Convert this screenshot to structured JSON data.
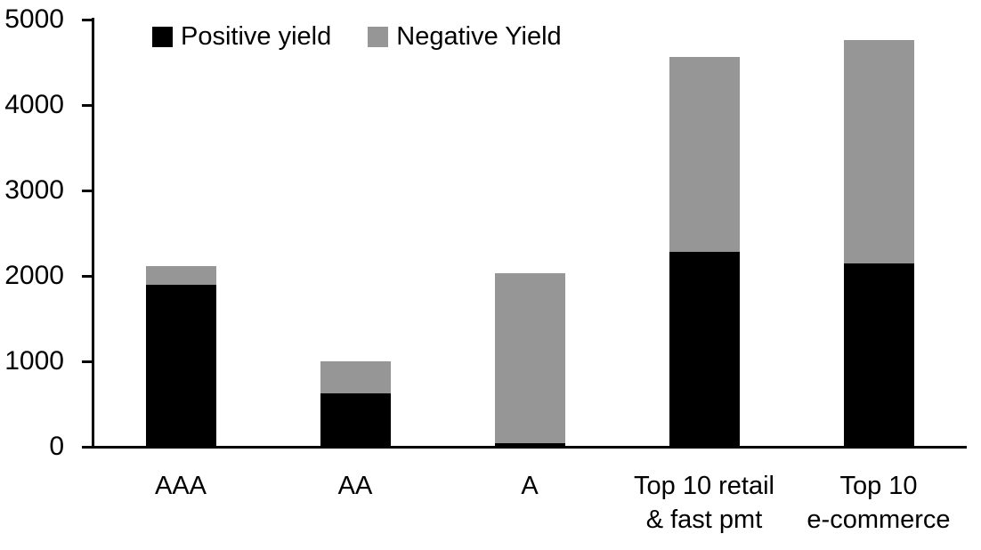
{
  "chart_data": {
    "type": "bar",
    "stacked": true,
    "categories": [
      "AAA",
      "AA",
      "A",
      "Top 10 retail\n& fast pmt",
      "Top 10\ne-commerce"
    ],
    "series": [
      {
        "name": "Positive yield",
        "color": "#000000",
        "values": [
          1900,
          620,
          40,
          2280,
          2150
        ]
      },
      {
        "name": "Negative Yield",
        "color": "#969696",
        "values": [
          220,
          380,
          1990,
          2280,
          2610
        ]
      }
    ],
    "ylim": [
      0,
      5000
    ],
    "yticks": [
      0,
      1000,
      2000,
      3000,
      4000,
      5000
    ],
    "xlabel": "",
    "ylabel": "",
    "grid": false,
    "legend_position": "top-left",
    "axis_color": "#000000",
    "background_color": "#ffffff"
  }
}
